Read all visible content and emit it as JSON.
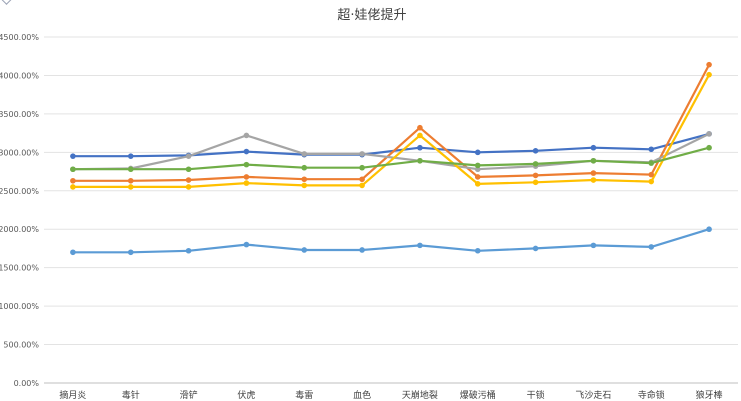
{
  "chart_data": {
    "type": "line",
    "title": "超·娃佬提升",
    "xlabel": "",
    "ylabel": "",
    "ylim": [
      0,
      4500
    ],
    "grid": true,
    "legend": "none",
    "y_tick_labels": [
      "0.00%",
      "500.00%",
      "1000.00%",
      "1500.00%",
      "2000.00%",
      "2500.00%",
      "3000.00%",
      "3500.00%",
      "4000.00%",
      "4500.00%"
    ],
    "categories": [
      "摘月炎",
      "毒针",
      "滑铲",
      "伏虎",
      "毒雷",
      "血色",
      "天崩地裂",
      "爆破污桶",
      "干锁",
      "飞沙走石",
      "寺命锁",
      "狼牙棒"
    ],
    "series": [
      {
        "color": "#4472c4",
        "values": [
          2950,
          2950,
          2960,
          3010,
          2970,
          2970,
          3060,
          3000,
          3020,
          3060,
          3040,
          3240
        ]
      },
      {
        "color": "#ed7d31",
        "values": [
          2630,
          2630,
          2640,
          2680,
          2650,
          2650,
          3320,
          2680,
          2700,
          2730,
          2710,
          4140
        ]
      },
      {
        "color": "#a5a5a5",
        "values": [
          2780,
          2790,
          2950,
          3220,
          2980,
          2980,
          2890,
          2780,
          2820,
          2890,
          2870,
          3240
        ]
      },
      {
        "color": "#ffc000",
        "values": [
          2550,
          2550,
          2550,
          2600,
          2570,
          2570,
          3220,
          2590,
          2610,
          2640,
          2620,
          4010
        ]
      },
      {
        "color": "#5b9bd5",
        "values": [
          1700,
          1700,
          1720,
          1800,
          1730,
          1730,
          1790,
          1720,
          1750,
          1790,
          1770,
          2000
        ]
      },
      {
        "color": "#70ad47",
        "values": [
          2780,
          2780,
          2780,
          2840,
          2800,
          2800,
          2890,
          2830,
          2850,
          2890,
          2860,
          3060
        ]
      }
    ]
  }
}
